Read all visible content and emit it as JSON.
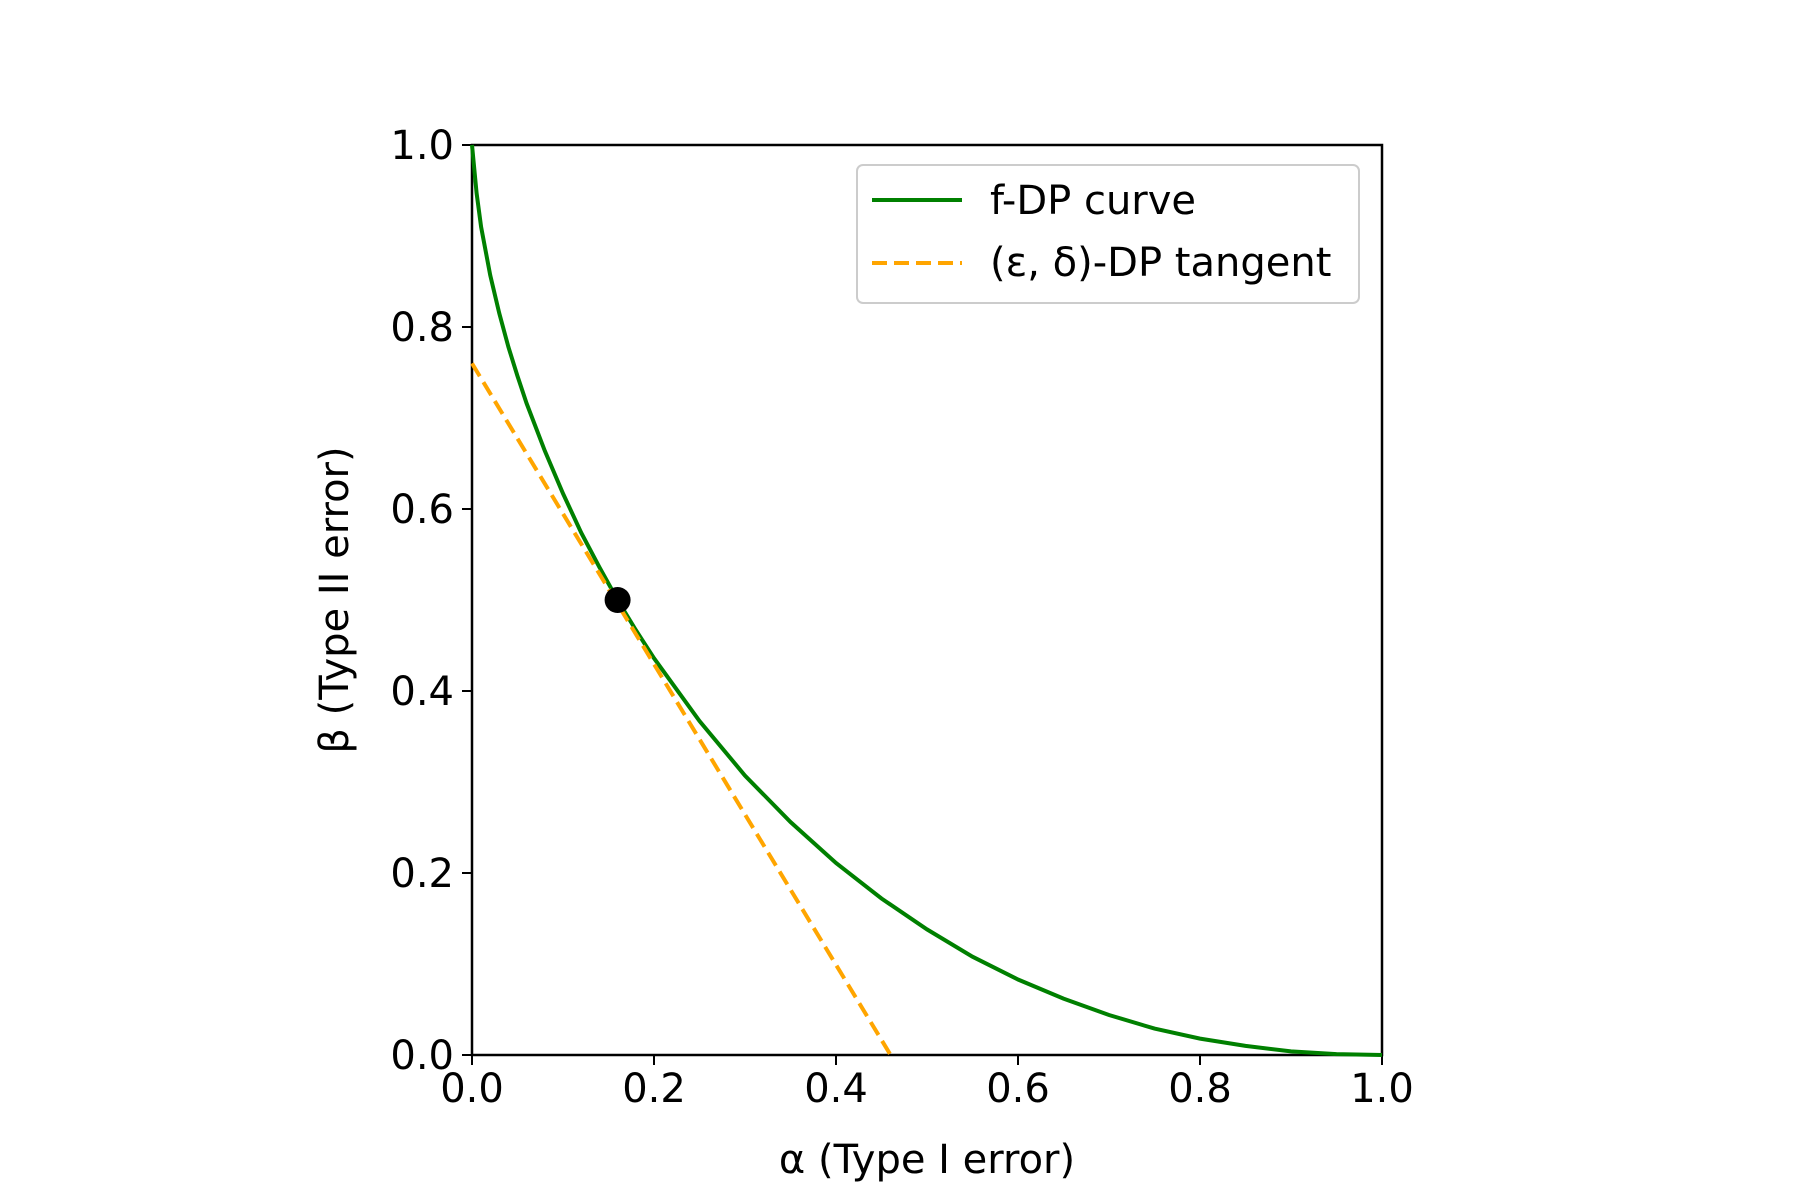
{
  "chart_data": {
    "type": "line",
    "title": "",
    "xlabel": "α (Type I error)",
    "ylabel": "β (Type II error)",
    "xlim": [
      0.0,
      1.0
    ],
    "ylim": [
      0.0,
      1.0
    ],
    "xticks": [
      "0.0",
      "0.2",
      "0.4",
      "0.6",
      "0.8",
      "1.0"
    ],
    "yticks": [
      "0.0",
      "0.2",
      "0.4",
      "0.6",
      "0.8",
      "1.0"
    ],
    "grid": false,
    "legend_position": "top-right",
    "series": [
      {
        "name": "f-DP curve",
        "style": "solid",
        "color": "#008000",
        "x": [
          0.0,
          0.005,
          0.01,
          0.02,
          0.03,
          0.04,
          0.05,
          0.06,
          0.08,
          0.1,
          0.12,
          0.14,
          0.16,
          0.18,
          0.2,
          0.25,
          0.3,
          0.35,
          0.4,
          0.45,
          0.5,
          0.55,
          0.6,
          0.65,
          0.7,
          0.75,
          0.8,
          0.85,
          0.9,
          0.95,
          1.0
        ],
        "y": [
          1.0,
          0.947,
          0.91,
          0.857,
          0.815,
          0.778,
          0.746,
          0.716,
          0.664,
          0.617,
          0.574,
          0.536,
          0.5,
          0.467,
          0.436,
          0.367,
          0.307,
          0.256,
          0.211,
          0.172,
          0.138,
          0.108,
          0.083,
          0.062,
          0.044,
          0.029,
          0.018,
          0.01,
          0.004,
          0.001,
          0.0
        ]
      },
      {
        "name": "(ε, δ)-DP tangent",
        "style": "dashed",
        "color": "#FFA500",
        "x": [
          0.0,
          0.46
        ],
        "y": [
          0.76,
          0.0
        ]
      }
    ],
    "points": [
      {
        "x": 0.16,
        "y": 0.5,
        "color": "#000000"
      }
    ]
  }
}
